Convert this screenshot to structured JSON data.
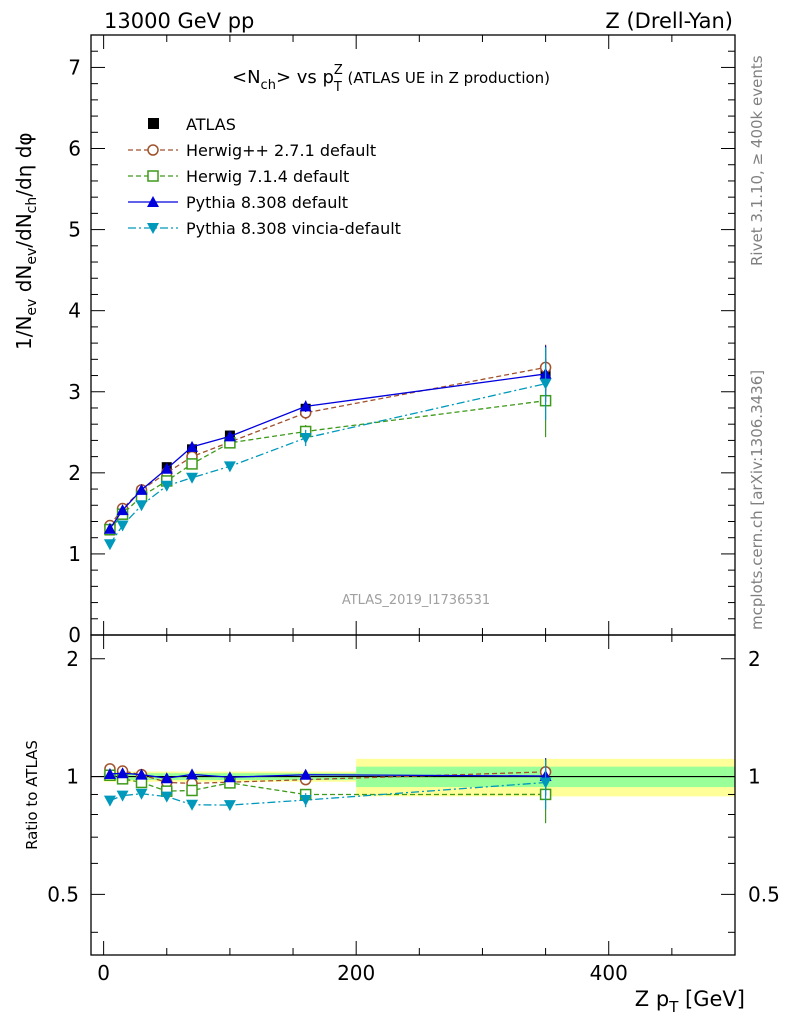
{
  "header": {
    "left": "13000 GeV pp",
    "right": "Z (Drell-Yan)"
  },
  "side": {
    "rivet": "Rivet 3.1.10, ≥ 400k events",
    "mcplots": "mcplots.cern.ch [arXiv:1306.3436]"
  },
  "chart_data": {
    "type": "line",
    "title_main": "<N",
    "title_sub": "ch",
    "title_mid": "> vs p",
    "title_sub2": "T",
    "title_sup": "Z",
    "title_rest": " (ATLAS UE in Z production)",
    "ylabel": "1/N_ev dN_ev/dN_ch/dη dφ",
    "ratio_ylabel": "Ratio to ATLAS",
    "xlabel": "Z p_T [GeV]",
    "analysis_id": "ATLAS_2019_I1736531",
    "xlim": [
      -10,
      500
    ],
    "ylim": [
      0,
      7.4
    ],
    "ratio_ylim": [
      0.35,
      2.3
    ],
    "xticks": [
      0,
      200,
      400
    ],
    "yticks": [
      0,
      1,
      2,
      3,
      4,
      5,
      6,
      7
    ],
    "ratio_yticks": [
      0.5,
      1,
      2
    ],
    "x": [
      5,
      15,
      30,
      50,
      70,
      100,
      160,
      350
    ],
    "data": {
      "name": "ATLAS",
      "values": [
        1.29,
        1.51,
        1.77,
        2.07,
        2.29,
        2.46,
        2.79,
        3.21
      ],
      "errors": [
        0.03,
        0.03,
        0.03,
        0.04,
        0.04,
        0.05,
        0.06,
        0.2
      ]
    },
    "band": {
      "xedges": [
        0,
        10,
        20,
        40,
        60,
        80,
        120,
        200,
        500
      ],
      "stat": [
        0.02,
        0.02,
        0.02,
        0.02,
        0.02,
        0.02,
        0.02,
        0.06
      ],
      "total": [
        0.03,
        0.03,
        0.03,
        0.03,
        0.03,
        0.03,
        0.03,
        0.11
      ]
    },
    "series": [
      {
        "name": "Herwig++ 2.7.1 default",
        "color": "#a0522d",
        "marker": "circle-open",
        "dash": "5,3",
        "values": [
          1.35,
          1.56,
          1.79,
          2.0,
          2.2,
          2.38,
          2.74,
          3.3
        ],
        "errors": [
          0.03,
          0.03,
          0.03,
          0.04,
          0.04,
          0.05,
          0.08,
          0.28
        ]
      },
      {
        "name": "Herwig 7.1.4 default",
        "color": "#3d9a1a",
        "marker": "square-open",
        "dash": "5,3",
        "values": [
          1.3,
          1.49,
          1.71,
          1.9,
          2.11,
          2.37,
          2.51,
          2.89
        ],
        "errors": [
          0.03,
          0.03,
          0.03,
          0.04,
          0.04,
          0.05,
          0.08,
          0.45
        ]
      },
      {
        "name": "Pythia 8.308 default",
        "color": "#0000dd",
        "marker": "triangle-up",
        "dash": "",
        "values": [
          1.31,
          1.54,
          1.79,
          2.05,
          2.32,
          2.45,
          2.82,
          3.22
        ],
        "errors": [
          0.03,
          0.03,
          0.03,
          0.04,
          0.04,
          0.05,
          0.07,
          0.35
        ]
      },
      {
        "name": "Pythia 8.308 vincia-default",
        "color": "#0099bb",
        "marker": "triangle-down",
        "dash": "8,3,2,3",
        "values": [
          1.12,
          1.35,
          1.6,
          1.84,
          1.94,
          2.08,
          2.43,
          3.1
        ],
        "errors": [
          0.03,
          0.03,
          0.03,
          0.04,
          0.04,
          0.05,
          0.1,
          0.45
        ]
      }
    ]
  }
}
